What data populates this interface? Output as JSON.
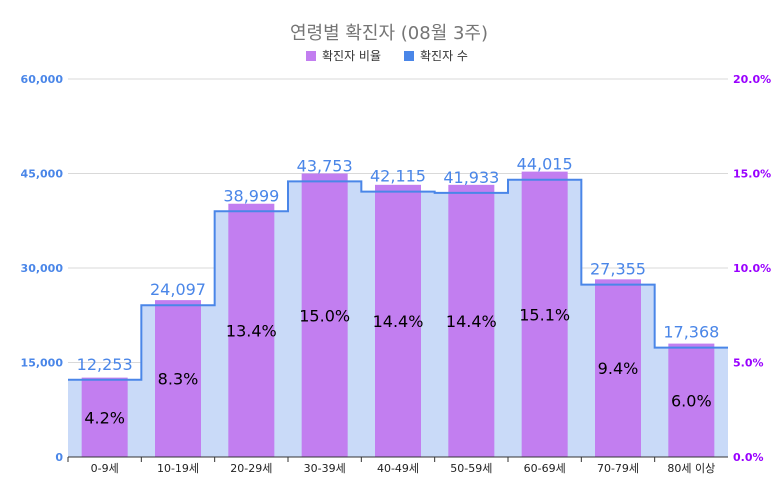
{
  "chart_data": {
    "type": "bar",
    "title": "연령별 확진자 (08월 3주)",
    "categories": [
      "0-9세",
      "10-19세",
      "20-29세",
      "30-39세",
      "40-49세",
      "50-59세",
      "60-69세",
      "70-79세",
      "80세 이상"
    ],
    "series": [
      {
        "name": "확진자 비율",
        "kind": "bar",
        "axis": "right",
        "color": "#c27ef0",
        "values": [
          4.2,
          8.3,
          13.4,
          15.0,
          14.4,
          14.4,
          15.1,
          9.4,
          6.0
        ],
        "labels": [
          "4.2%",
          "8.3%",
          "13.4%",
          "15.0%",
          "14.4%",
          "14.4%",
          "15.1%",
          "9.4%",
          "6.0%"
        ]
      },
      {
        "name": "확진자 수",
        "kind": "stepped-area",
        "axis": "left",
        "color": "#4a86e8",
        "fill": "#c9daf8",
        "values": [
          12253,
          24097,
          38999,
          43753,
          42115,
          41933,
          44015,
          27355,
          17368
        ],
        "labels": [
          "12,253",
          "24,097",
          "38,999",
          "43,753",
          "42,115",
          "41,933",
          "44,015",
          "27,355",
          "17,368"
        ]
      }
    ],
    "y_left": {
      "ylim": [
        0,
        60000
      ],
      "ticks": [
        "0",
        "15,000",
        "30,000",
        "45,000",
        "60,000"
      ],
      "color": "#4a86e8"
    },
    "y_right": {
      "ylim": [
        0,
        20
      ],
      "ticks": [
        "0.0%",
        "5.0%",
        "10.0%",
        "15.0%",
        "20.0%"
      ],
      "color": "#9900ff"
    },
    "legend": {
      "position": "top",
      "items": [
        "확진자 비율",
        "확진자 수"
      ]
    },
    "grid": true
  }
}
